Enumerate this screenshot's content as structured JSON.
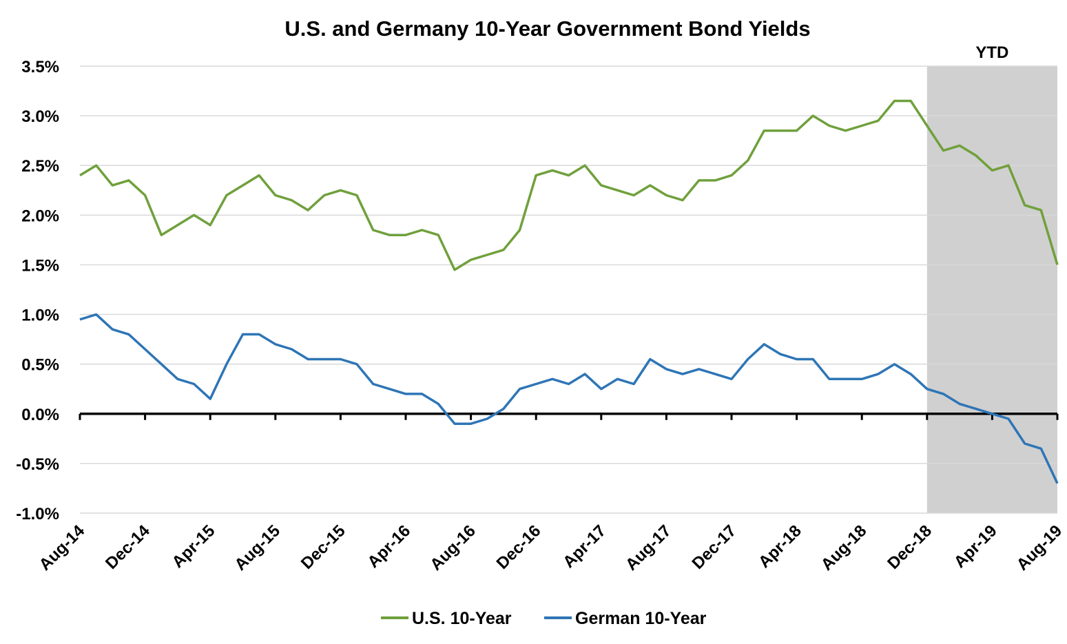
{
  "chart_data": {
    "type": "line",
    "title": "U.S. and Germany 10-Year Government Bond Yields",
    "categories": [
      "Aug-14",
      null,
      null,
      null,
      "Dec-14",
      null,
      null,
      null,
      "Apr-15",
      null,
      null,
      null,
      "Aug-15",
      null,
      null,
      null,
      "Dec-15",
      null,
      null,
      null,
      "Apr-16",
      null,
      null,
      null,
      "Aug-16",
      null,
      null,
      null,
      "Dec-16",
      null,
      null,
      null,
      "Apr-17",
      null,
      null,
      null,
      "Aug-17",
      null,
      null,
      null,
      "Dec-17",
      null,
      null,
      null,
      "Apr-18",
      null,
      null,
      null,
      "Aug-18",
      null,
      null,
      null,
      "Dec-18",
      null,
      null,
      null,
      "Apr-19",
      null,
      null,
      null,
      "Aug-19"
    ],
    "series": [
      {
        "name": "U.S. 10-Year",
        "color": "#70a03c",
        "values": [
          2.4,
          2.5,
          2.3,
          2.35,
          2.2,
          1.8,
          1.9,
          2.0,
          1.9,
          2.2,
          2.3,
          2.4,
          2.2,
          2.15,
          2.05,
          2.2,
          2.25,
          2.2,
          1.85,
          1.8,
          1.8,
          1.85,
          1.8,
          1.45,
          1.55,
          1.6,
          1.65,
          1.85,
          2.4,
          2.45,
          2.4,
          2.5,
          2.3,
          2.25,
          2.2,
          2.3,
          2.2,
          2.15,
          2.35,
          2.35,
          2.4,
          2.55,
          2.85,
          2.85,
          2.85,
          3.0,
          2.9,
          2.85,
          2.9,
          2.95,
          3.15,
          3.15,
          2.9,
          2.65,
          2.7,
          2.6,
          2.45,
          2.5,
          2.1,
          2.05,
          1.5
        ]
      },
      {
        "name": "German 10-Year",
        "color": "#2e75b6",
        "values": [
          0.95,
          1.0,
          0.85,
          0.8,
          0.65,
          0.5,
          0.35,
          0.3,
          0.15,
          0.5,
          0.8,
          0.8,
          0.7,
          0.65,
          0.55,
          0.55,
          0.55,
          0.5,
          0.3,
          0.25,
          0.2,
          0.2,
          0.1,
          -0.1,
          -0.1,
          -0.05,
          0.05,
          0.25,
          0.3,
          0.35,
          0.3,
          0.4,
          0.25,
          0.35,
          0.3,
          0.55,
          0.45,
          0.4,
          0.45,
          0.4,
          0.35,
          0.55,
          0.7,
          0.6,
          0.55,
          0.55,
          0.35,
          0.35,
          0.35,
          0.4,
          0.5,
          0.4,
          0.25,
          0.2,
          0.1,
          0.05,
          0.0,
          -0.05,
          -0.3,
          -0.35,
          -0.7
        ]
      }
    ],
    "ylim": [
      -1.0,
      3.5
    ],
    "yticks": [
      {
        "value": -1.0,
        "label": "-1.0%"
      },
      {
        "value": -0.5,
        "label": "-0.5%"
      },
      {
        "value": 0.0,
        "label": "0.0%"
      },
      {
        "value": 0.5,
        "label": "0.5%"
      },
      {
        "value": 1.0,
        "label": "1.0%"
      },
      {
        "value": 1.5,
        "label": "1.5%"
      },
      {
        "value": 2.0,
        "label": "2.0%"
      },
      {
        "value": 2.5,
        "label": "2.5%"
      },
      {
        "value": 3.0,
        "label": "3.0%"
      },
      {
        "value": 3.5,
        "label": "3.5%"
      }
    ],
    "grid": true,
    "legend": "bottom",
    "shaded_region": {
      "label": "YTD",
      "from": "Dec-18",
      "to": "Aug-19",
      "color": "#d0d0d0"
    }
  }
}
